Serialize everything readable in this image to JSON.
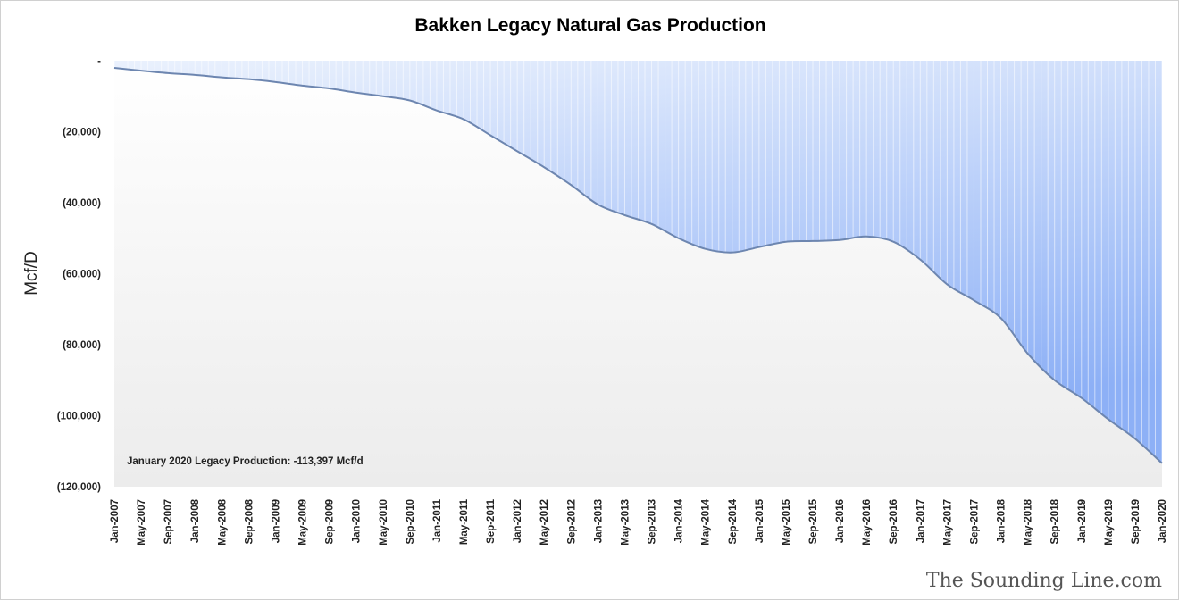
{
  "chart_data": {
    "type": "area",
    "title": "Bakken Legacy Natural Gas Production",
    "xlabel": "",
    "ylabel": "Mcf/D",
    "ylim": [
      -120000,
      0
    ],
    "yticks": [
      0,
      -20000,
      -40000,
      -60000,
      -80000,
      -100000,
      -120000
    ],
    "ytick_labels": [
      "-",
      "(20,000)",
      "(40,000)",
      "(60,000)",
      "(80,000)",
      "(100,000)",
      "(120,000)"
    ],
    "x": [
      "Jan-2007",
      "May-2007",
      "Sep-2007",
      "Jan-2008",
      "May-2008",
      "Sep-2008",
      "Jan-2009",
      "May-2009",
      "Sep-2009",
      "Jan-2010",
      "May-2010",
      "Sep-2010",
      "Jan-2011",
      "May-2011",
      "Sep-2011",
      "Jan-2012",
      "May-2012",
      "Sep-2012",
      "Jan-2013",
      "May-2013",
      "Sep-2013",
      "Jan-2014",
      "May-2014",
      "Sep-2014",
      "Jan-2015",
      "May-2015",
      "Sep-2015",
      "Jan-2016",
      "May-2016",
      "Sep-2016",
      "Jan-2017",
      "May-2017",
      "Sep-2017",
      "Jan-2018",
      "May-2018",
      "Sep-2018",
      "Jan-2019",
      "May-2019",
      "Sep-2019",
      "Jan-2020"
    ],
    "values": [
      -2000,
      -2800,
      -3500,
      -4000,
      -4700,
      -5200,
      -6000,
      -7000,
      -7800,
      -9000,
      -10000,
      -11200,
      -14000,
      -16500,
      -21000,
      -25500,
      -30000,
      -35000,
      -40500,
      -43500,
      -46000,
      -50000,
      -53000,
      -54000,
      -52500,
      -51000,
      -50800,
      -50500,
      -49500,
      -51000,
      -56000,
      -63000,
      -67500,
      -72500,
      -82500,
      -90000,
      -95000,
      -101000,
      -106500,
      -113397
    ],
    "months_between_labels": 4,
    "grid": false,
    "annotation": "January 2020  Legacy Production: -113,397  Mcf/d",
    "watermark": "The Sounding Line.com"
  },
  "colors": {
    "area_top": "#eaf1fd",
    "area_bottom": "#8db0f6",
    "line": "#6d86b0"
  }
}
